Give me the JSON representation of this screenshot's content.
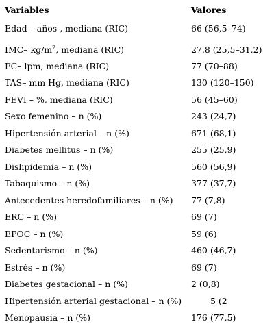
{
  "table": {
    "header": {
      "variable": "Variables",
      "value": "Valores"
    },
    "rows": [
      {
        "variable": "Edad – años , mediana (RIC)",
        "value": "66 (56,5–74)"
      },
      {
        "variable_pre": "IMC– kg/m",
        "variable_sup": "2",
        "variable_post": ", mediana (RIC)",
        "value": "27.8 (25,5–31,2)"
      },
      {
        "variable": "FC– lpm, mediana (RIC)",
        "value": "77 (70–88)"
      },
      {
        "variable": "TAS– mm Hg, mediana (RIC)",
        "value": "130 (120–150)"
      },
      {
        "variable": "FEVI – %, mediana (RIC)",
        "value": "56 (45–60)"
      },
      {
        "variable": "Sexo femenino – n (%)",
        "value": "243 (24,7)"
      },
      {
        "variable": "Hipertensión arterial – n (%)",
        "value": "671 (68,1)"
      },
      {
        "variable": "Diabetes mellitus – n (%)",
        "value": "255 (25,9)"
      },
      {
        "variable": "Dislipidemia – n (%)",
        "value": "560 (56,9)"
      },
      {
        "variable": "Tabaquismo – n (%)",
        "value": "377 (37,7)"
      },
      {
        "variable": "Antecedentes heredofamiliares – n (%)",
        "value": "77 (7,8)"
      },
      {
        "variable": "ERC – n (%)",
        "value": "69 (7)"
      },
      {
        "variable": "EPOC – n (%)",
        "value": "59 (6)"
      },
      {
        "variable": "Sedentarismo – n (%)",
        "value": "460 (46,7)"
      },
      {
        "variable": "Estrés – n (%)",
        "value": "69 (7)"
      },
      {
        "variable": "Diabetes gestacional – n (%)",
        "value": "2 (0,8)"
      },
      {
        "variable": "Hipertensión arterial gestacional – n (%)",
        "value": "5 (2"
      },
      {
        "variable": "Menopausia – n (%)",
        "value": "176 (77,5)"
      }
    ]
  }
}
